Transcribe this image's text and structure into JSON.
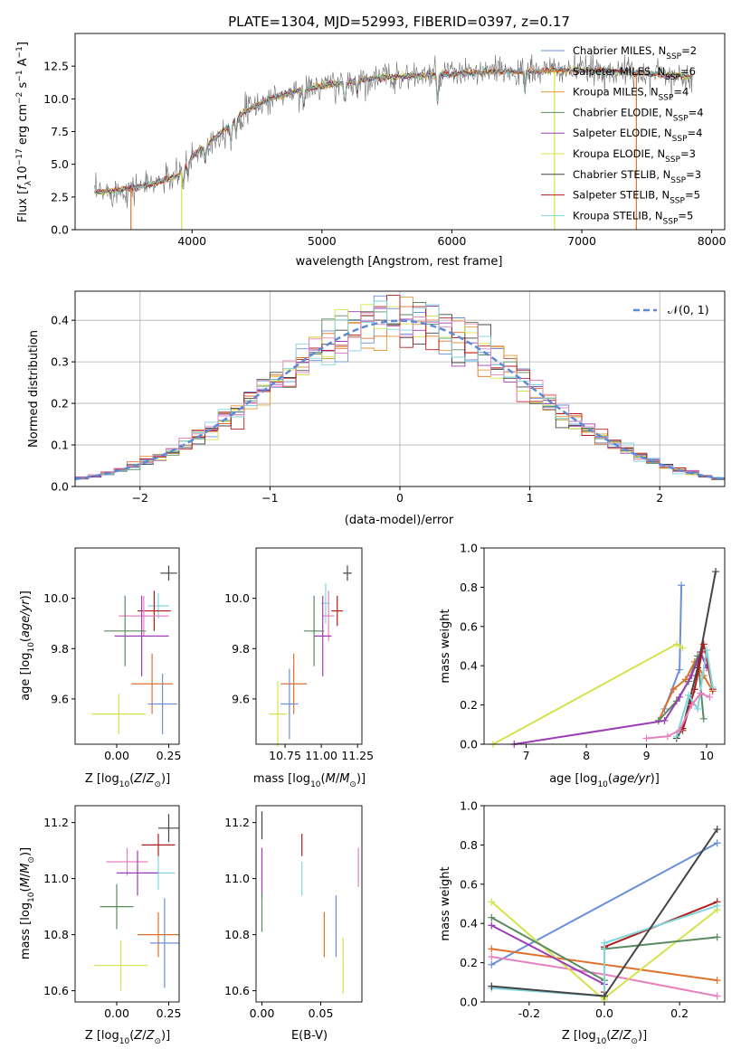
{
  "title": "PLATE=1304, MJD=52993, FIBERID=0397, z=0.17",
  "colors": {
    "Chabrier MILES": "#6a8fdb",
    "Salpeter MILES": "#e0712b",
    "Kroupa MILES": "#e29a3b",
    "Chabrier ELODIE": "#5a8a5f",
    "Salpeter ELODIE": "#9b3db5",
    "Kroupa ELODIE": "#d4e34a",
    "Chabrier STELIB": "#444444",
    "Salpeter STELIB": "#b31b1b",
    "Kroupa STELIB": "#7fd6db",
    "MILES_pink": "#e880c0"
  },
  "chart_data": [
    {
      "id": "spectrum",
      "type": "line",
      "xlabel": "wavelength [Angstrom, rest frame]",
      "ylabel": "Flux [fλ10⁻¹⁷ erg cm⁻² s⁻¹ A⁻¹]",
      "xlim": [
        3100,
        8100
      ],
      "ylim": [
        0,
        15
      ],
      "xticks": [
        4000,
        5000,
        6000,
        7000,
        8000
      ],
      "yticks": [
        0.0,
        2.5,
        5.0,
        7.5,
        10.0,
        12.5
      ],
      "grid": false,
      "legend_position": "top-right",
      "legend": [
        {
          "label": "Chabrier MILES, N",
          "sub": "SSP",
          "tail": "=2",
          "color": "#6a8fdb"
        },
        {
          "label": "Salpeter MILES, N",
          "sub": "SSP",
          "tail": "=6",
          "color": "#e0712b"
        },
        {
          "label": "Kroupa MILES, N",
          "sub": "SSP",
          "tail": "=4",
          "color": "#e29a3b"
        },
        {
          "label": "Chabrier ELODIE, N",
          "sub": "SSP",
          "tail": "=4",
          "color": "#5a8a5f"
        },
        {
          "label": "Salpeter ELODIE, N",
          "sub": "SSP",
          "tail": "=4",
          "color": "#9b3db5"
        },
        {
          "label": "Kroupa ELODIE, N",
          "sub": "SSP",
          "tail": "=3",
          "color": "#d4e34a"
        },
        {
          "label": "Chabrier STELIB, N",
          "sub": "SSP",
          "tail": "=3",
          "color": "#444444"
        },
        {
          "label": "Salpeter STELIB, N",
          "sub": "SSP",
          "tail": "=5",
          "color": "#b31b1b"
        },
        {
          "label": "Kroupa STELIB, N",
          "sub": "SSP",
          "tail": "=5",
          "color": "#7fd6db"
        }
      ],
      "continuum": {
        "x": [
          3250,
          3500,
          3700,
          3900,
          4000,
          4200,
          4400,
          4600,
          4800,
          5000,
          5200,
          5400,
          5600,
          5800,
          6000,
          6200,
          6400,
          6600,
          6800,
          7000,
          7200,
          7400,
          7600,
          7800
        ],
        "y": [
          2.8,
          3.1,
          3.5,
          4.2,
          5.6,
          7.2,
          9.0,
          10.0,
          10.6,
          11.0,
          11.3,
          11.6,
          11.7,
          11.8,
          11.9,
          12.0,
          12.1,
          12.1,
          12.2,
          12.2,
          12.1,
          12.0,
          11.9,
          11.7
        ]
      },
      "drops": [
        {
          "x": 3530,
          "color": "#e0712b"
        },
        {
          "x": 3920,
          "color": "#d4e34a"
        },
        {
          "x": 6790,
          "color": "#d4e34a"
        },
        {
          "x": 7420,
          "color": "#e0712b"
        }
      ]
    },
    {
      "id": "residuals",
      "type": "step-histogram",
      "xlabel": "(data-model)/error",
      "ylabel": "Normed distribution",
      "xlim": [
        -2.5,
        2.5
      ],
      "ylim": [
        0,
        0.47
      ],
      "xticks": [
        -2,
        -1,
        0,
        1,
        2
      ],
      "yticks": [
        0.0,
        0.1,
        0.2,
        0.3,
        0.4
      ],
      "grid": true,
      "legend_label": "N(0,1)",
      "legend_position": "top-right",
      "bin_width": 0.1
    },
    {
      "id": "age_vs_Z",
      "type": "errorbar",
      "xlabel": "Z [log10(Z/Z⊙)]",
      "ylabel": "age [log10(age/yr)]",
      "xlim": [
        -0.2,
        0.3
      ],
      "ylim": [
        9.42,
        10.2
      ],
      "xticks": [
        0.0,
        0.25
      ],
      "yticks": [
        9.6,
        9.8,
        10.0
      ],
      "points": [
        {
          "x": 0.25,
          "y": 10.1,
          "xe": 0.04,
          "ye": 0.03,
          "color": "#444444"
        },
        {
          "x": 0.2,
          "y": 9.97,
          "xe": 0.05,
          "ye": 0.05,
          "color": "#7fd6db"
        },
        {
          "x": 0.18,
          "y": 9.95,
          "xe": 0.08,
          "ye": 0.08,
          "color": "#b31b1b"
        },
        {
          "x": 0.13,
          "y": 9.93,
          "xe": 0.12,
          "ye": 0.08,
          "color": "#e880c0"
        },
        {
          "x": 0.12,
          "y": 9.85,
          "xe": 0.13,
          "ye": 0.16,
          "color": "#9b3db5"
        },
        {
          "x": 0.04,
          "y": 9.87,
          "xe": 0.1,
          "ye": 0.14,
          "color": "#5a8a5f"
        },
        {
          "x": 0.17,
          "y": 9.66,
          "xe": 0.1,
          "ye": 0.12,
          "color": "#e0712b"
        },
        {
          "x": 0.22,
          "y": 9.58,
          "xe": 0.07,
          "ye": 0.12,
          "color": "#6a8fdb"
        },
        {
          "x": 0.01,
          "y": 9.54,
          "xe": 0.13,
          "ye": 0.08,
          "color": "#d4e34a"
        }
      ]
    },
    {
      "id": "age_vs_mass",
      "type": "errorbar",
      "xlabel": "mass [log10(M/M⊙)]",
      "ylabel": "",
      "xlim": [
        10.55,
        11.28
      ],
      "ylim": [
        9.42,
        10.2
      ],
      "xticks": [
        10.75,
        11.0,
        11.25
      ],
      "yticks": [
        9.6,
        9.8,
        10.0
      ],
      "points": [
        {
          "x": 11.18,
          "y": 10.1,
          "xe": 0.03,
          "ye": 0.03,
          "color": "#444444"
        },
        {
          "x": 11.11,
          "y": 9.95,
          "xe": 0.04,
          "ye": 0.06,
          "color": "#b31b1b"
        },
        {
          "x": 11.03,
          "y": 9.98,
          "xe": 0.03,
          "ye": 0.08,
          "color": "#7fd6db"
        },
        {
          "x": 11.05,
          "y": 9.93,
          "xe": 0.04,
          "ye": 0.1,
          "color": "#e880c0"
        },
        {
          "x": 11.01,
          "y": 9.85,
          "xe": 0.06,
          "ye": 0.16,
          "color": "#9b3db5"
        },
        {
          "x": 10.95,
          "y": 9.87,
          "xe": 0.07,
          "ye": 0.14,
          "color": "#5a8a5f"
        },
        {
          "x": 10.81,
          "y": 9.66,
          "xe": 0.09,
          "ye": 0.12,
          "color": "#e0712b"
        },
        {
          "x": 10.78,
          "y": 9.58,
          "xe": 0.06,
          "ye": 0.14,
          "color": "#6a8fdb"
        },
        {
          "x": 10.7,
          "y": 9.54,
          "xe": 0.06,
          "ye": 0.13,
          "color": "#d4e34a"
        }
      ]
    },
    {
      "id": "mass_weight_vs_age",
      "type": "line",
      "xlabel": "age [log10(age/yr)]",
      "ylabel": "mass weight",
      "xlim": [
        6.3,
        10.3
      ],
      "ylim": [
        0,
        1.0
      ],
      "xticks": [
        7,
        8,
        9,
        10
      ],
      "yticks": [
        0.0,
        0.2,
        0.4,
        0.6,
        0.8,
        1.0
      ],
      "series": [
        {
          "color": "#6a8fdb",
          "x": [
            9.3,
            9.55,
            9.58
          ],
          "y": [
            0.18,
            0.38,
            0.81
          ]
        },
        {
          "color": "#e0712b",
          "x": [
            9.2,
            9.45,
            9.65,
            9.8,
            9.95,
            10.1
          ],
          "y": [
            0.12,
            0.28,
            0.33,
            0.42,
            0.35,
            0.27
          ]
        },
        {
          "color": "#5a8a5f",
          "x": [
            9.2,
            9.5,
            9.7,
            9.85,
            9.95
          ],
          "y": [
            0.12,
            0.22,
            0.32,
            0.45,
            0.13
          ]
        },
        {
          "color": "#9b3db5",
          "x": [
            6.8,
            9.3,
            9.55,
            9.75,
            9.9,
            10.0
          ],
          "y": [
            0.0,
            0.12,
            0.24,
            0.35,
            0.47,
            0.39
          ]
        },
        {
          "color": "#d4e34a",
          "x": [
            6.45,
            9.5,
            9.6
          ],
          "y": [
            0.0,
            0.51,
            0.49
          ]
        },
        {
          "color": "#444444",
          "x": [
            9.5,
            9.6,
            9.85,
            10.15
          ],
          "y": [
            0.03,
            0.08,
            0.39,
            0.88
          ]
        },
        {
          "color": "#b31b1b",
          "x": [
            9.6,
            9.8,
            9.95,
            10.1
          ],
          "y": [
            0.07,
            0.28,
            0.51,
            0.28
          ]
        },
        {
          "color": "#7fd6db",
          "x": [
            9.5,
            9.7,
            9.85,
            10.0,
            10.1
          ],
          "y": [
            0.04,
            0.25,
            0.18,
            0.48,
            0.29
          ]
        },
        {
          "color": "#e880c0",
          "x": [
            9.0,
            9.35,
            9.55,
            9.75,
            9.9,
            10.05
          ],
          "y": [
            0.03,
            0.04,
            0.07,
            0.2,
            0.26,
            0.24
          ]
        }
      ]
    },
    {
      "id": "mass_vs_Z",
      "type": "errorbar",
      "xlabel": "Z [log10(Z/Z⊙)]",
      "ylabel": "mass [log10(M/M⊙)]",
      "xlim": [
        -0.2,
        0.3
      ],
      "ylim": [
        10.56,
        11.26
      ],
      "xticks": [
        0.0,
        0.25
      ],
      "yticks": [
        10.6,
        10.8,
        11.0,
        11.2
      ],
      "points": [
        {
          "x": 0.25,
          "y": 11.18,
          "xe": 0.05,
          "ye": 0.05,
          "color": "#444444"
        },
        {
          "x": 0.2,
          "y": 11.12,
          "xe": 0.08,
          "ye": 0.04,
          "color": "#b31b1b"
        },
        {
          "x": 0.2,
          "y": 11.02,
          "xe": 0.08,
          "ye": 0.06,
          "color": "#7fd6db"
        },
        {
          "x": 0.05,
          "y": 11.06,
          "xe": 0.1,
          "ye": 0.05,
          "color": "#e880c0"
        },
        {
          "x": 0.1,
          "y": 11.02,
          "xe": 0.1,
          "ye": 0.08,
          "color": "#9b3db5"
        },
        {
          "x": 0.0,
          "y": 10.9,
          "xe": 0.08,
          "ye": 0.08,
          "color": "#5a8a5f"
        },
        {
          "x": 0.2,
          "y": 10.8,
          "xe": 0.1,
          "ye": 0.08,
          "color": "#e0712b"
        },
        {
          "x": 0.23,
          "y": 10.77,
          "xe": 0.07,
          "ye": 0.16,
          "color": "#6a8fdb"
        },
        {
          "x": 0.02,
          "y": 10.69,
          "xe": 0.13,
          "ye": 0.09,
          "color": "#d4e34a"
        }
      ]
    },
    {
      "id": "mass_vs_ebv",
      "type": "errorbar",
      "xlabel": "E(B-V)",
      "ylabel": "",
      "xlim": [
        -0.005,
        0.085
      ],
      "ylim": [
        10.56,
        11.26
      ],
      "xticks": [
        0.0,
        0.05
      ],
      "yticks": [
        10.6,
        10.8,
        11.0,
        11.2
      ],
      "points": [
        {
          "x": 0.0,
          "y": 11.19,
          "xe": 0,
          "ye": 0.05,
          "color": "#444444"
        },
        {
          "x": 0.0,
          "y": 11.02,
          "xe": 0,
          "ye": 0.09,
          "color": "#9b3db5"
        },
        {
          "x": 0.0,
          "y": 10.88,
          "xe": 0,
          "ye": 0.07,
          "color": "#5a8a5f"
        },
        {
          "x": 0.034,
          "y": 11.12,
          "xe": 0,
          "ye": 0.04,
          "color": "#b31b1b"
        },
        {
          "x": 0.034,
          "y": 11.0,
          "xe": 0,
          "ye": 0.06,
          "color": "#7fd6db"
        },
        {
          "x": 0.053,
          "y": 10.8,
          "xe": 0,
          "ye": 0.08,
          "color": "#e0712b"
        },
        {
          "x": 0.063,
          "y": 10.83,
          "xe": 0,
          "ye": 0.11,
          "color": "#6a8fdb"
        },
        {
          "x": 0.069,
          "y": 10.69,
          "xe": 0,
          "ye": 0.1,
          "color": "#d4e34a"
        },
        {
          "x": 0.082,
          "y": 11.04,
          "xe": 0,
          "ye": 0.07,
          "color": "#e880c0"
        }
      ]
    },
    {
      "id": "mass_weight_vs_Z",
      "type": "line",
      "xlabel": "Z [log10(Z/Z⊙)]",
      "ylabel": "mass weight",
      "xlim": [
        -0.32,
        0.32
      ],
      "ylim": [
        0,
        1.0
      ],
      "xticks": [
        -0.2,
        0.0,
        0.2
      ],
      "yticks": [
        0.0,
        0.2,
        0.4,
        0.6,
        0.8,
        1.0
      ],
      "series": [
        {
          "color": "#6a8fdb",
          "x": [
            -0.3,
            0.3
          ],
          "y": [
            0.19,
            0.81
          ]
        },
        {
          "color": "#e0712b",
          "x": [
            -0.3,
            0.3
          ],
          "y": [
            0.27,
            0.11
          ]
        },
        {
          "color": "#e880c0",
          "x": [
            -0.3,
            0.0,
            0.3
          ],
          "y": [
            0.23,
            0.14,
            0.03
          ]
        },
        {
          "color": "#d4e34a",
          "x": [
            -0.3,
            0.0,
            0.0,
            0.3
          ],
          "y": [
            0.51,
            0.01,
            0.02,
            0.47
          ]
        },
        {
          "color": "#9b3db5",
          "x": [
            -0.3,
            0.0
          ],
          "y": [
            0.39,
            0.09
          ]
        },
        {
          "color": "#5a8a5f",
          "x": [
            -0.3,
            0.0,
            0.0,
            0.3
          ],
          "y": [
            0.43,
            0.11,
            0.27,
            0.33
          ]
        },
        {
          "color": "#b31b1b",
          "x": [
            0.0,
            0.0,
            0.3
          ],
          "y": [
            0.05,
            0.28,
            0.51
          ]
        },
        {
          "color": "#7fd6db",
          "x": [
            -0.3,
            0.0,
            0.0,
            0.3
          ],
          "y": [
            0.07,
            0.03,
            0.3,
            0.49
          ]
        },
        {
          "color": "#444444",
          "x": [
            -0.3,
            0.0,
            0.3
          ],
          "y": [
            0.08,
            0.03,
            0.88
          ]
        }
      ]
    }
  ]
}
